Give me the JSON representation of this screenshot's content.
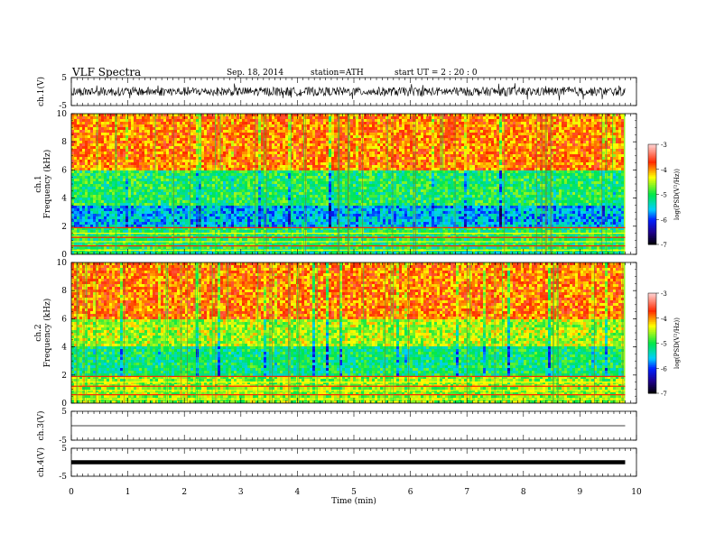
{
  "header": {
    "title": "VLF  Spectra",
    "date": "Sep. 18, 2014",
    "station": "station=ATH",
    "start": "start  UT  =   2  : 20 : 0"
  },
  "chart_data": [
    {
      "type": "line",
      "title": "",
      "ylabel": "ch.1(V)",
      "ylim": [
        -5,
        5
      ],
      "yticks": [
        "5",
        "-5"
      ],
      "x": [
        0,
        9.8
      ],
      "note_values": "continuous noisy waveform around 0 V, amplitude mostly within ±2 V, spikes to about ±3 V"
    },
    {
      "type": "heatmap",
      "ylabel": "ch.1\nFrequency  (kHz)",
      "ylim": [
        0,
        10
      ],
      "yticks": [
        "0",
        "2",
        "4",
        "6",
        "8",
        "10"
      ],
      "xlim": [
        0,
        10
      ],
      "data_extent_x": [
        0,
        9.8
      ],
      "bands": [
        {
          "from_khz": 0,
          "to_khz": 0.2,
          "level": "mixed"
        },
        {
          "from_khz": 0.2,
          "to_khz": 2.0,
          "level": "green/cyan with red and yellow horizontal lines"
        },
        {
          "from_khz": 2.0,
          "to_khz": 3.5,
          "level": "cyan/blue"
        },
        {
          "from_khz": 3.5,
          "to_khz": 6.0,
          "level": "green"
        },
        {
          "from_khz": 6.0,
          "to_khz": 10.0,
          "level": "red/yellow"
        }
      ],
      "colorbar": {
        "label": "log(PSD(V²/Hz))",
        "range": [
          -7,
          -3
        ],
        "ticks": [
          "-3",
          "-4",
          "-5",
          "-6",
          "-7"
        ]
      }
    },
    {
      "type": "heatmap",
      "ylabel": "ch.2\nFrequency  (kHz)",
      "ylim": [
        0,
        10
      ],
      "yticks": [
        "0",
        "2",
        "4",
        "6",
        "8",
        "10"
      ],
      "xlim": [
        0,
        10
      ],
      "data_extent_x": [
        0,
        9.8
      ],
      "bands": [
        {
          "from_khz": 0,
          "to_khz": 2.0,
          "level": "green/yellow with red horizontal lines"
        },
        {
          "from_khz": 2.0,
          "to_khz": 4.0,
          "level": "green/cyan"
        },
        {
          "from_khz": 4.0,
          "to_khz": 6.0,
          "level": "yellow/green"
        },
        {
          "from_khz": 6.0,
          "to_khz": 10.0,
          "level": "red/yellow"
        }
      ],
      "colorbar": {
        "label": "log(PSD(V²/Hz))",
        "range": [
          -7,
          -3
        ],
        "ticks": [
          "-3",
          "-4",
          "-5",
          "-6",
          "-7"
        ]
      }
    },
    {
      "type": "line",
      "ylabel": "ch.3(V)",
      "ylim": [
        -5,
        5
      ],
      "yticks": [
        "5",
        "-5"
      ],
      "x": [
        0,
        9.8
      ],
      "y_level": 0
    },
    {
      "type": "line",
      "ylabel": "ch.4(V)",
      "ylim": [
        -5,
        5
      ],
      "yticks": [
        "5",
        "-5"
      ],
      "x": [
        0,
        9.8
      ],
      "y_level": 0
    }
  ],
  "xaxis": {
    "label": "Time  (min)",
    "ticks": [
      "0",
      "1",
      "2",
      "3",
      "4",
      "5",
      "6",
      "7",
      "8",
      "9",
      "10"
    ],
    "xlim": [
      0,
      10
    ]
  },
  "colors": {
    "red": "#ff2a00",
    "yellow": "#ffff00",
    "green": "#00e84a",
    "cyan": "#00cfff",
    "blue": "#0020ff"
  }
}
